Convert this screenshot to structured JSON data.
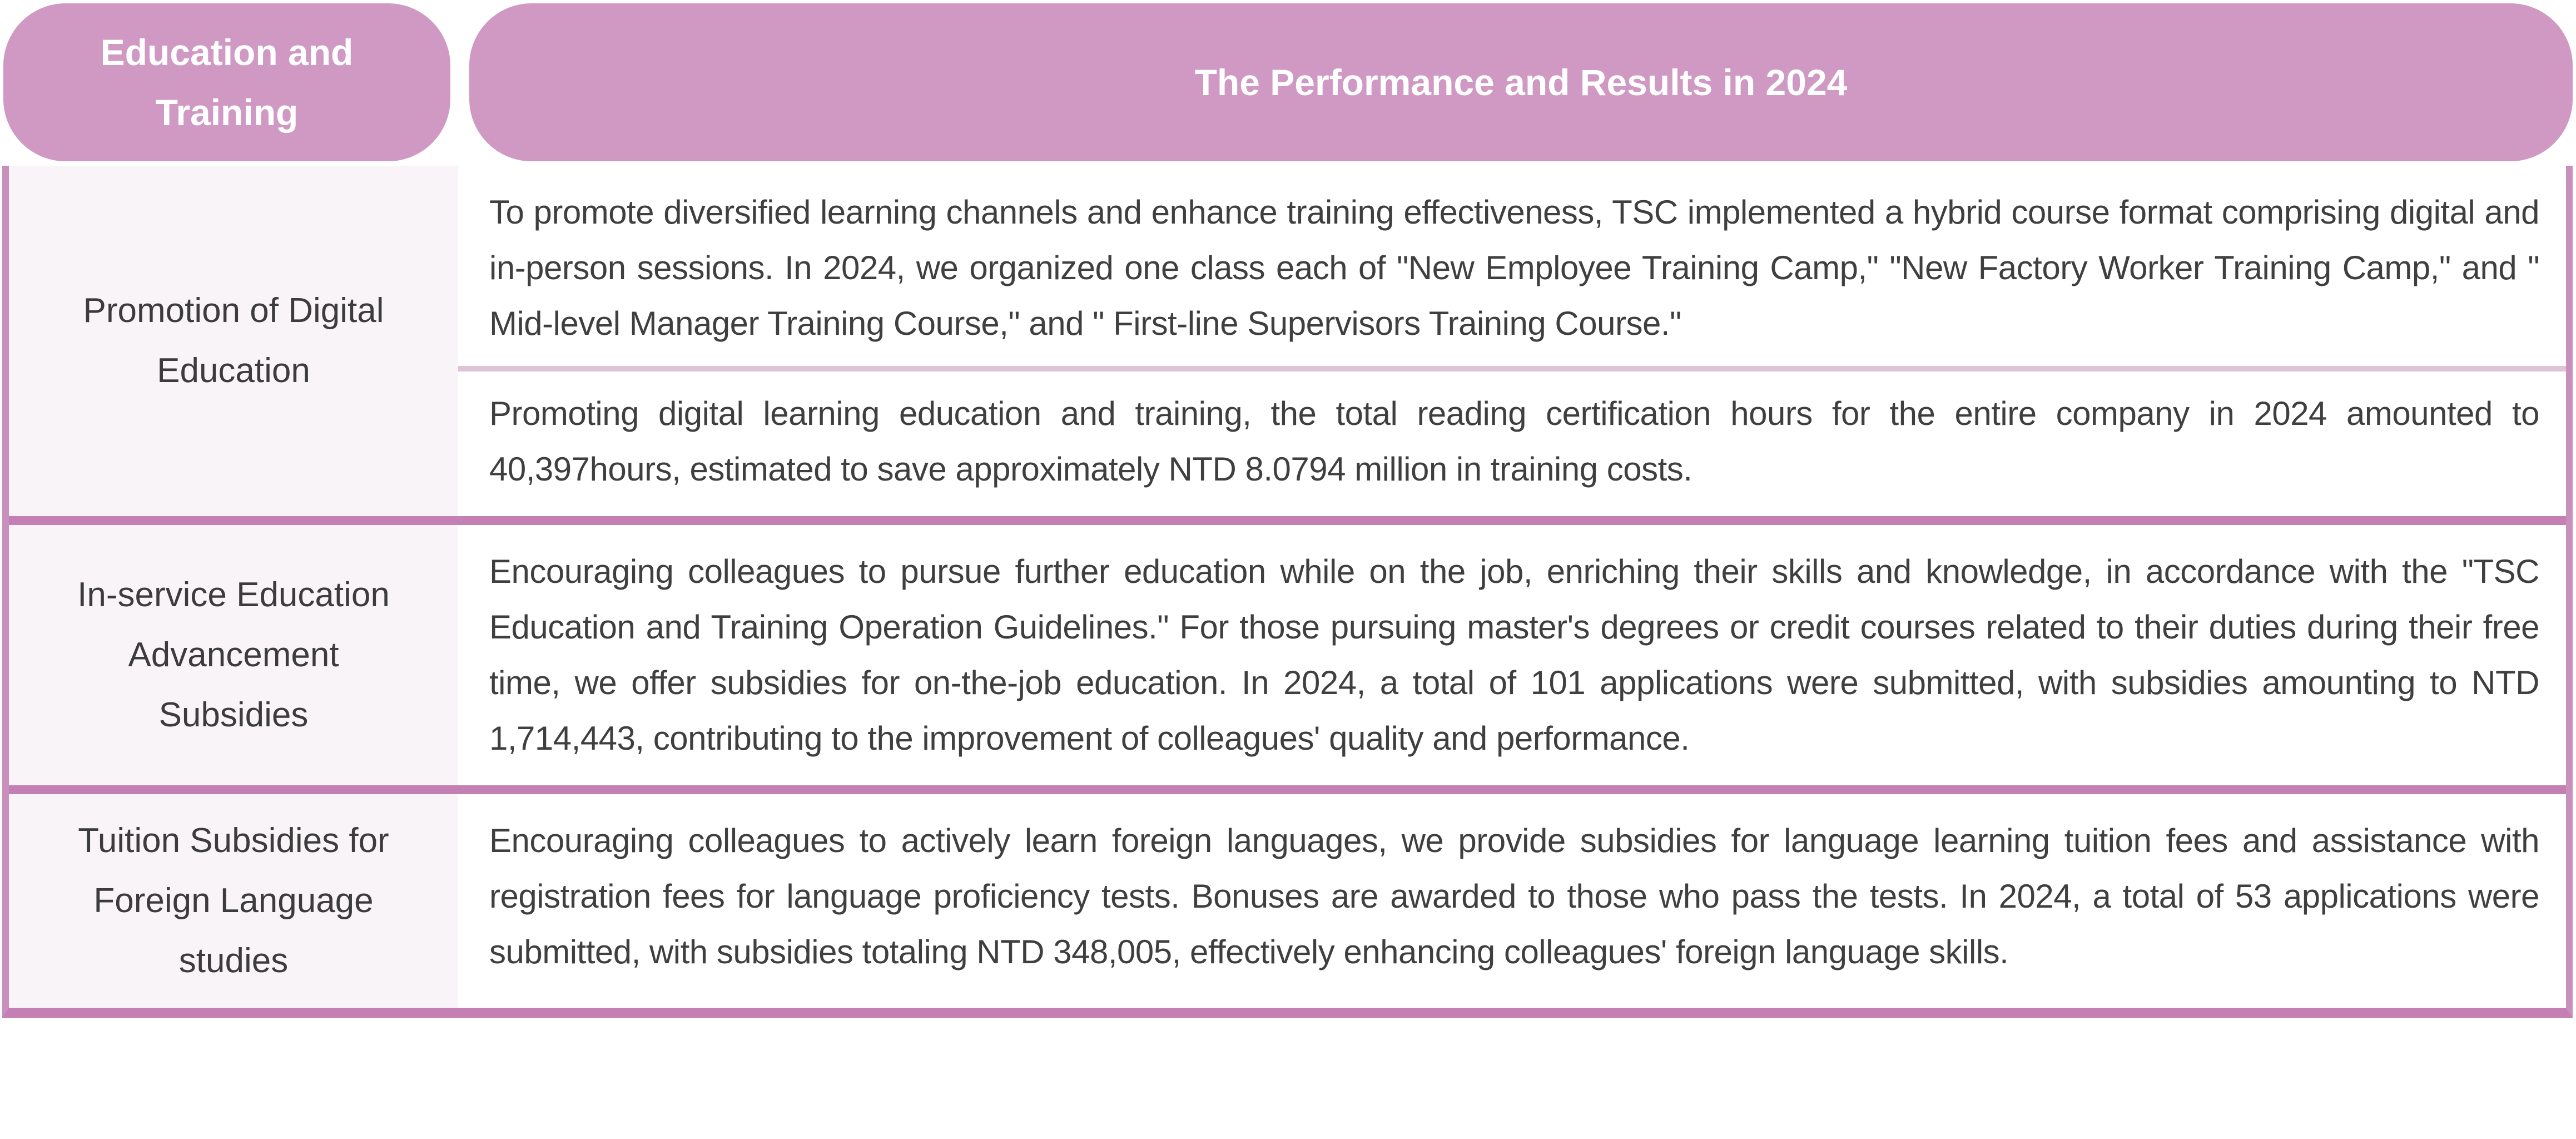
{
  "table": {
    "header": {
      "col1": "Education and Training",
      "col2": "The Performance and Results in 2024"
    },
    "rows": [
      {
        "label": "Promotion of Digital Education",
        "paragraphs": [
          "To promote diversified learning channels and enhance training effectiveness, TSC implemented a hybrid course format comprising digital and in-person sessions. In 2024, we organized one class each of \"New Employee Training Camp,\" \"New Factory Worker Training Camp,\" and \" Mid-level Manager Training Course,\" and \" First-line Supervisors Training Course.\"",
          "Promoting digital learning education and training, the total reading certification hours for the entire company in 2024 amounted to 40,397hours, estimated to save approximately NTD 8.0794 million in training costs."
        ]
      },
      {
        "label": "In-service Education Advancement Subsidies",
        "paragraphs": [
          "Encouraging colleagues to pursue further education while on the job, enriching their skills and knowledge, in accordance with the \"TSC Education and Training Operation Guidelines.\" For those pursuing master's degrees or credit courses related to their duties during their free time, we offer subsidies for on-the-job education. In 2024, a total of 101 applications were submitted, with subsidies amounting to NTD 1,714,443, contributing to the improvement of colleagues' quality and performance."
        ]
      },
      {
        "label": "Tuition Subsidies for Foreign Language studies",
        "paragraphs": [
          "Encouraging colleagues to actively learn foreign languages, we provide subsidies for language learning tuition fees and assistance with registration fees for language proficiency tests. Bonuses are awarded to those who pass the tests. In 2024, a total of 53 applications were submitted, with subsidies totaling NTD 348,005, effectively enhancing colleagues' foreign language skills."
        ]
      }
    ],
    "colors": {
      "header_pill": "#cf99c3",
      "header_text": "#ffffff",
      "row_separator": "#c480b4",
      "outer_border": "#c98fbd",
      "paragraph_divider": "#ddc4d6",
      "label_cell_background": "#f9f4f7",
      "body_text": "#3f3f3f"
    }
  }
}
